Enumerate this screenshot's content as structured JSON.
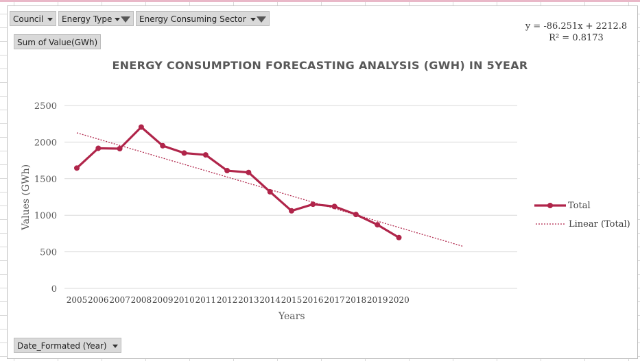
{
  "pivot": {
    "council_label": "Council",
    "energy_type_label": "Energy Type",
    "energy_sector_label": "Energy Consuming Sector",
    "value_label": "Sum of Value(GWh)",
    "date_label": "Date_Formated  (Year)"
  },
  "trendline": {
    "equation": "y = -86.251x + 2212.8",
    "r_squared": "R² = 0.8173",
    "slope": -86.251,
    "intercept": 2212.8,
    "x_end": 19
  },
  "colors": {
    "series": "#b0254a",
    "grid": "#d9d9d9",
    "text": "#595959"
  },
  "chart_data": {
    "type": "line",
    "title": "ENERGY CONSUMPTION FORECASTING ANALYSIS (GWH) IN 5YEAR",
    "xlabel": "Years",
    "ylabel": "Values (GWh)",
    "ylim": [
      0,
      2500
    ],
    "yticks": [
      0,
      500,
      1000,
      1500,
      2000,
      2500
    ],
    "grid": true,
    "legend_position": "right",
    "categories": [
      "2005",
      "2006",
      "2007",
      "2008",
      "2009",
      "2010",
      "2011",
      "2012",
      "2013",
      "2014",
      "2015",
      "2016",
      "2017",
      "2018",
      "2019",
      "2020"
    ],
    "series": [
      {
        "name": "Total",
        "values": [
          1645,
          1915,
          1910,
          2205,
          1950,
          1850,
          1825,
          1610,
          1585,
          1320,
          1060,
          1150,
          1120,
          1010,
          870,
          695
        ]
      },
      {
        "name": "Linear (Total)"
      }
    ]
  }
}
